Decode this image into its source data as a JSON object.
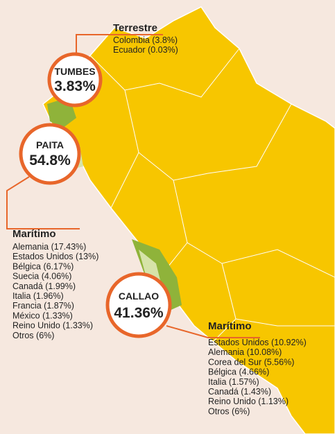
{
  "ports": [
    {
      "name": "TUMBES",
      "share": "3.83%"
    },
    {
      "name": "PAITA",
      "share": "54.8%"
    },
    {
      "name": "CALLAO",
      "share": "41.36%"
    }
  ],
  "lists": [
    {
      "title": "Terrestre",
      "items": [
        "Colombia (3.8%)",
        "Ecuador (0.03%)"
      ]
    },
    {
      "title": "Marítimo",
      "items": [
        "Alemania (17.43%)",
        "Estados Unidos (13%)",
        "Bélgica (6.17%)",
        "Suecia (4.06%)",
        "Canadá (1.99%)",
        "Italia (1.96%)",
        "Francia (1.87%)",
        "México (1.33%)",
        "Reino Unido (1.33%)",
        "Otros (6%)"
      ]
    },
    {
      "title": "Marítimo",
      "items": [
        "Estados Unidos (10.92%)",
        "Alemania (10.08%)",
        "Corea del Sur (5.56%)",
        "Bélgica (4.66%)",
        "Italia (1.57%)",
        "Canadá (1.43%)",
        "Reino Unido (1.13%)",
        "Otros (6%)"
      ]
    }
  ]
}
